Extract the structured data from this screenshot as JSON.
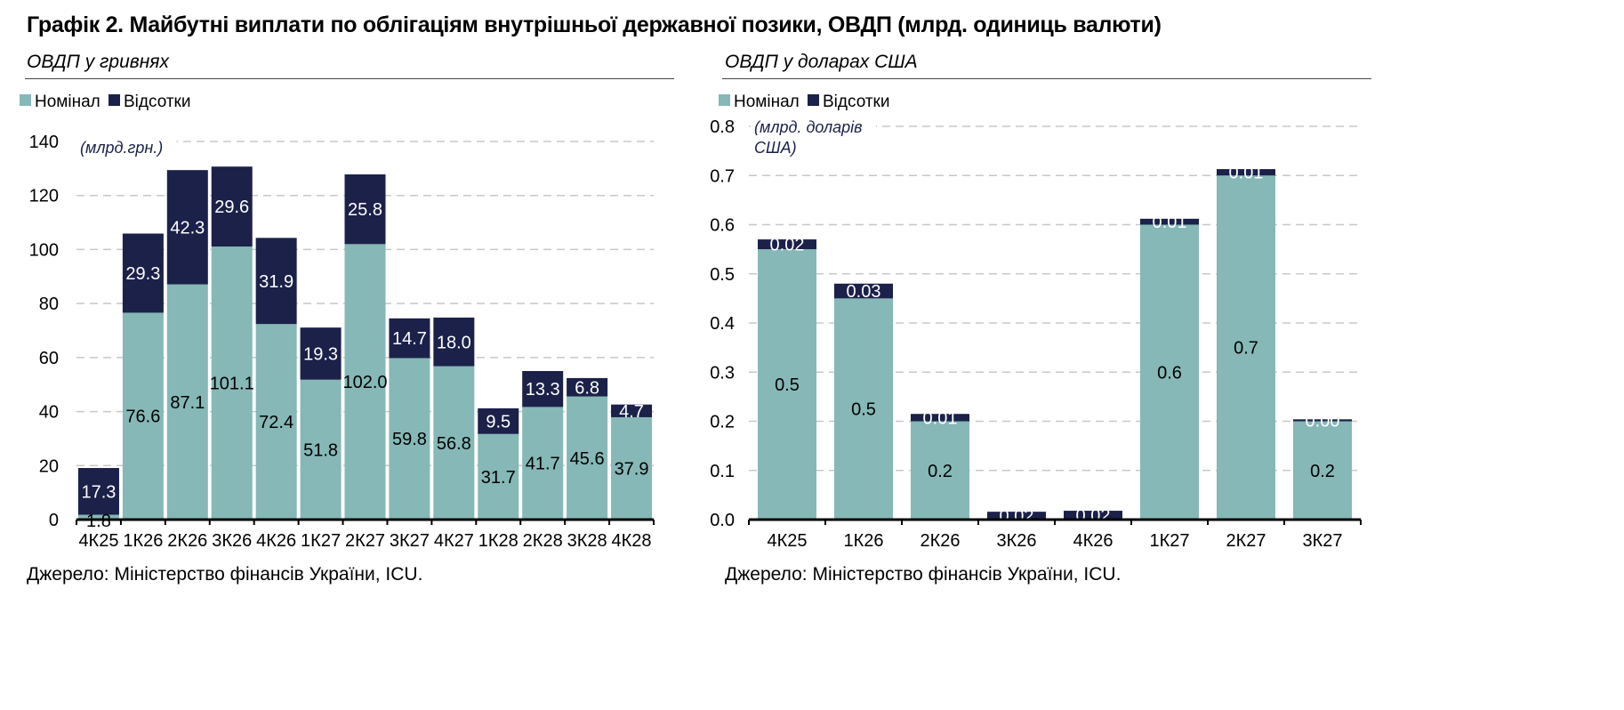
{
  "title": "Графік 2. Майбутні виплати по облігаціям внутрішньої державної позики, ОВДП (млрд. одиниць валюти)",
  "colors": {
    "nominal": "#85b8b6",
    "interest": "#1b2149",
    "grid": "#c8c8c8"
  },
  "chart_data": [
    {
      "type": "bar",
      "stacked": true,
      "subtitle": "ОВДП у гривнях",
      "unit_label": "(млрд.грн.)",
      "source": "Джерело: Міністерство фінансів України, ICU.",
      "legend": [
        "Номінал",
        "Відсотки"
      ],
      "legend_position": "top-left",
      "categories": [
        "4К25",
        "1К26",
        "2К26",
        "3К26",
        "4К26",
        "1К27",
        "2К27",
        "3К27",
        "4К27",
        "1К28",
        "2К28",
        "3К28",
        "4К28"
      ],
      "series": [
        {
          "name": "Номінал",
          "values": [
            1.8,
            76.6,
            87.1,
            101.1,
            72.4,
            51.8,
            102.0,
            59.8,
            56.8,
            31.7,
            41.7,
            45.6,
            37.9
          ],
          "labels": [
            "1.8",
            "76.6",
            "87.1",
            "101.1",
            "72.4",
            "51.8",
            "102.0",
            "59.8",
            "56.8",
            "31.7",
            "41.7",
            "45.6",
            "37.9"
          ]
        },
        {
          "name": "Відсотки",
          "values": [
            17.3,
            29.3,
            42.3,
            29.6,
            31.9,
            19.3,
            25.8,
            14.7,
            18.0,
            9.5,
            13.3,
            6.8,
            4.7
          ],
          "labels": [
            "17.3",
            "29.3",
            "42.3",
            "29.6",
            "31.9",
            "19.3",
            "25.8",
            "14.7",
            "18.0",
            "9.5",
            "13.3",
            "6.8",
            "4.7"
          ]
        }
      ],
      "ylim": [
        0,
        140
      ],
      "yticks": [
        "0",
        "20",
        "40",
        "60",
        "80",
        "100",
        "120",
        "140"
      ],
      "ytick_values": [
        0,
        20,
        40,
        60,
        80,
        100,
        120,
        140
      ],
      "grid": true
    },
    {
      "type": "bar",
      "stacked": true,
      "subtitle": "ОВДП у доларах США",
      "unit_label": [
        "(млрд. доларів",
        "США)"
      ],
      "source": "Джерело: Міністерство фінансів України, ICU.",
      "legend": [
        "Номінал",
        "Відсотки"
      ],
      "legend_position": "top-left",
      "categories": [
        "4К25",
        "1К26",
        "2К26",
        "3К26",
        "4К26",
        "1К27",
        "2К27",
        "3К27"
      ],
      "series": [
        {
          "name": "Номінал",
          "values": [
            0.55,
            0.45,
            0.2,
            0,
            0,
            0.6,
            0.7,
            0.2
          ],
          "labels": [
            "0.5",
            "0.5",
            "0.2",
            "",
            "",
            "0.6",
            "0.7",
            "0.2"
          ]
        },
        {
          "name": "Відсотки",
          "values": [
            0.02,
            0.03,
            0.015,
            0.016,
            0.018,
            0.012,
            0.013,
            0.004
          ],
          "labels": [
            "0.02",
            "0.03",
            "0.01",
            "0.02",
            "0.02",
            "0.01",
            "0.01",
            "0.00"
          ]
        }
      ],
      "ylim": [
        0,
        0.8
      ],
      "yticks": [
        "0.0",
        "0.1",
        "0.2",
        "0.3",
        "0.4",
        "0.5",
        "0.6",
        "0.7",
        "0.8"
      ],
      "ytick_values": [
        0,
        0.1,
        0.2,
        0.3,
        0.4,
        0.5,
        0.6,
        0.7,
        0.8
      ],
      "grid": true
    }
  ]
}
